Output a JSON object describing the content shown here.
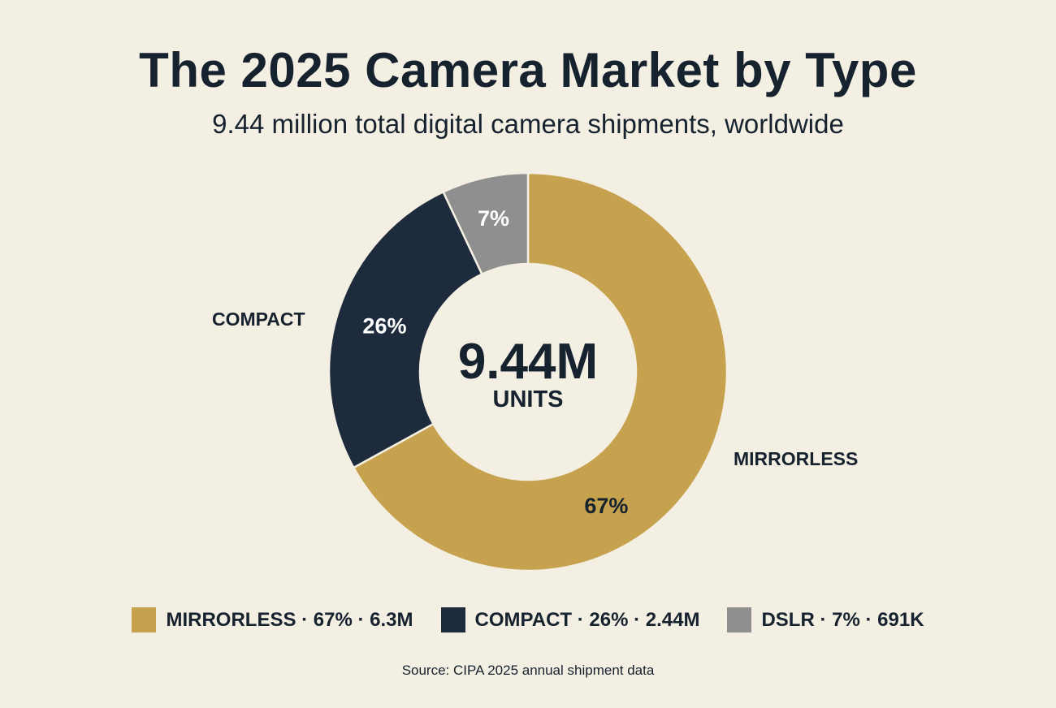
{
  "chart_data": {
    "type": "pie",
    "subtype": "donut",
    "title": "The 2025 Camera Market by Type",
    "subtitle": "9.44 million total digital camera shipments, worldwide",
    "center_value": "9.44M",
    "center_unit": "UNITS",
    "slices": [
      {
        "name": "MIRRORLESS",
        "percent": 67,
        "percent_label": "67%",
        "units": "6.3M",
        "color": "#c6a24e",
        "label_color": "#17222f",
        "outside_label": "MIRRORLESS"
      },
      {
        "name": "COMPACT",
        "percent": 26,
        "percent_label": "26%",
        "units": "2.44M",
        "color": "#1e2b3c",
        "label_color": "#ffffff",
        "outside_label": "COMPACT"
      },
      {
        "name": "DSLR",
        "percent": 7,
        "percent_label": "7%",
        "units": "691K",
        "color": "#8f8f8f",
        "label_color": "#ffffff"
      }
    ],
    "legend": [
      "MIRRORLESS · 67% · 6.3M",
      "COMPACT · 26% · 2.44M",
      "DSLR · 7% · 691K"
    ],
    "legend_position": "bottom",
    "source": "Source: CIPA 2025 annual shipment data"
  },
  "colors": {
    "background": "#f3efe3",
    "text": "#17222f"
  }
}
